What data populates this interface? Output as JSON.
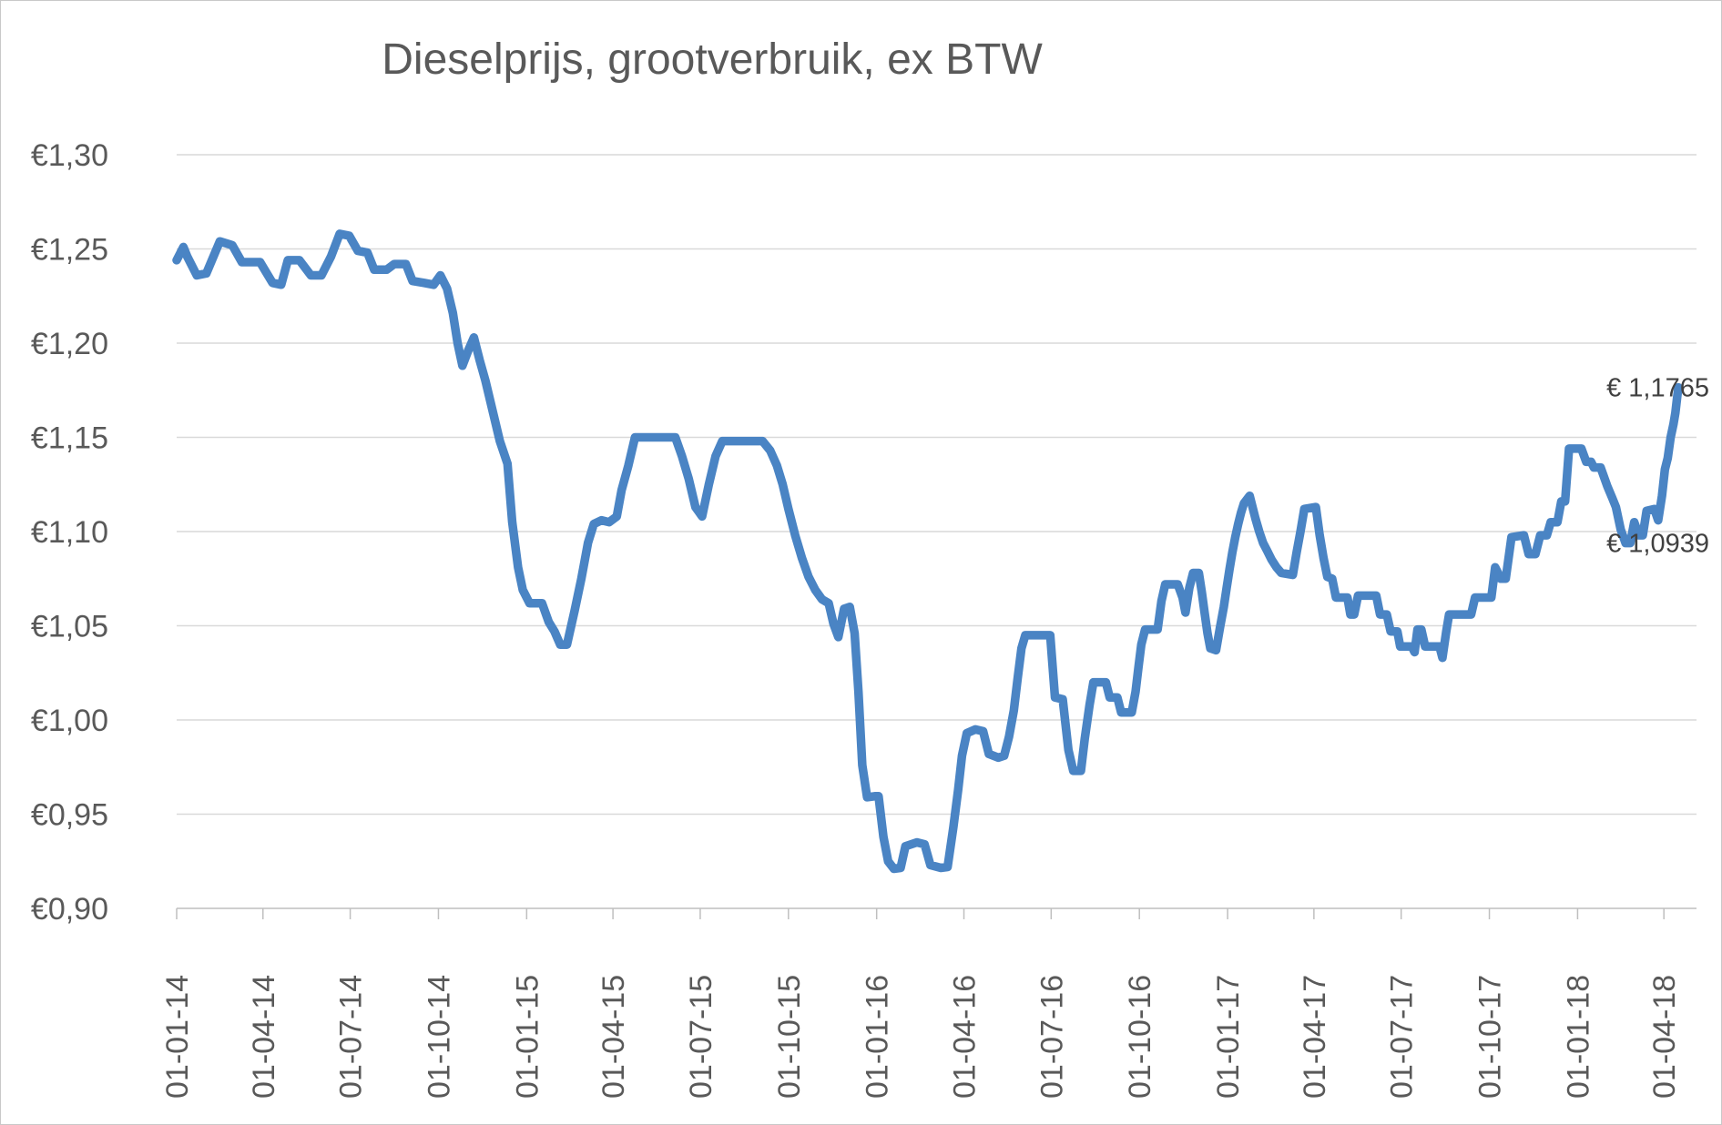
{
  "chart_data": {
    "type": "line",
    "title": "Dieselprijs, grootverbruik, ex BTW",
    "xlabel": "",
    "ylabel": "",
    "grid": true,
    "legend": "none",
    "ylim": [
      0.9,
      1.3
    ],
    "x_domain": [
      "2014-01-01",
      "2018-05-05"
    ],
    "colors": {
      "series": "#4a84c4",
      "gridline": "#d9d9d9",
      "axis": "#bfbfbf",
      "axis_text": "#595959",
      "title_text": "#595959",
      "data_label_text": "#404040",
      "background": "#ffffff"
    },
    "y_ticks": [
      {
        "value": 1.3,
        "label": "€1,30"
      },
      {
        "value": 1.25,
        "label": "€1,25"
      },
      {
        "value": 1.2,
        "label": "€1,20"
      },
      {
        "value": 1.15,
        "label": "€1,15"
      },
      {
        "value": 1.1,
        "label": "€1,10"
      },
      {
        "value": 1.05,
        "label": "€1,05"
      },
      {
        "value": 1.0,
        "label": "€1,00"
      },
      {
        "value": 0.95,
        "label": "€0,95"
      },
      {
        "value": 0.9,
        "label": "€0,90"
      }
    ],
    "x_ticks": [
      {
        "date": "2014-01-01",
        "label": "01-01-14"
      },
      {
        "date": "2014-04-01",
        "label": "01-04-14"
      },
      {
        "date": "2014-07-01",
        "label": "01-07-14"
      },
      {
        "date": "2014-10-01",
        "label": "01-10-14"
      },
      {
        "date": "2015-01-01",
        "label": "01-01-15"
      },
      {
        "date": "2015-04-01",
        "label": "01-04-15"
      },
      {
        "date": "2015-07-01",
        "label": "01-07-15"
      },
      {
        "date": "2015-10-01",
        "label": "01-10-15"
      },
      {
        "date": "2016-01-01",
        "label": "01-01-16"
      },
      {
        "date": "2016-04-01",
        "label": "01-04-16"
      },
      {
        "date": "2016-07-01",
        "label": "01-07-16"
      },
      {
        "date": "2016-10-01",
        "label": "01-10-16"
      },
      {
        "date": "2017-01-01",
        "label": "01-01-17"
      },
      {
        "date": "2017-04-01",
        "label": "01-04-17"
      },
      {
        "date": "2017-07-01",
        "label": "01-07-17"
      },
      {
        "date": "2017-10-01",
        "label": "01-10-17"
      },
      {
        "date": "2018-01-01",
        "label": "01-01-18"
      },
      {
        "date": "2018-04-01",
        "label": "01-04-18"
      }
    ],
    "annotations": [
      {
        "label": "€ 1,1765",
        "value": 1.1765
      },
      {
        "label": "€ 1,0939",
        "value": 1.0939
      }
    ],
    "series": [
      {
        "name": "Dieselprijs grootverbruik ex BTW",
        "color": "#4a84c4",
        "points": [
          [
            "2014-01-01",
            1.244
          ],
          [
            "2014-01-08",
            1.251
          ],
          [
            "2014-01-12",
            1.246
          ],
          [
            "2014-01-22",
            1.236
          ],
          [
            "2014-02-01",
            1.237
          ],
          [
            "2014-02-15",
            1.254
          ],
          [
            "2014-02-28",
            1.252
          ],
          [
            "2014-03-10",
            1.243
          ],
          [
            "2014-03-29",
            1.243
          ],
          [
            "2014-04-11",
            1.232
          ],
          [
            "2014-04-20",
            1.231
          ],
          [
            "2014-04-27",
            1.244
          ],
          [
            "2014-05-09",
            1.244
          ],
          [
            "2014-05-21",
            1.236
          ],
          [
            "2014-06-01",
            1.236
          ],
          [
            "2014-06-11",
            1.246
          ],
          [
            "2014-06-20",
            1.258
          ],
          [
            "2014-06-30",
            1.257
          ],
          [
            "2014-07-09",
            1.249
          ],
          [
            "2014-07-19",
            1.248
          ],
          [
            "2014-07-26",
            1.239
          ],
          [
            "2014-08-08",
            1.239
          ],
          [
            "2014-08-16",
            1.242
          ],
          [
            "2014-08-28",
            1.242
          ],
          [
            "2014-09-04",
            1.233
          ],
          [
            "2014-09-16",
            1.232
          ],
          [
            "2014-09-26",
            1.231
          ],
          [
            "2014-10-03",
            1.236
          ],
          [
            "2014-10-10",
            1.229
          ],
          [
            "2014-10-16",
            1.216
          ],
          [
            "2014-10-21",
            1.2
          ],
          [
            "2014-10-26",
            1.188
          ],
          [
            "2014-11-01",
            1.196
          ],
          [
            "2014-11-07",
            1.203
          ],
          [
            "2014-11-13",
            1.191
          ],
          [
            "2014-11-19",
            1.18
          ],
          [
            "2014-11-27",
            1.163
          ],
          [
            "2014-12-04",
            1.148
          ],
          [
            "2014-12-12",
            1.136
          ],
          [
            "2014-12-17",
            1.105
          ],
          [
            "2014-12-23",
            1.081
          ],
          [
            "2014-12-28",
            1.069
          ],
          [
            "2015-01-04",
            1.062
          ],
          [
            "2015-01-17",
            1.062
          ],
          [
            "2015-01-24",
            1.052
          ],
          [
            "2015-01-30",
            1.047
          ],
          [
            "2015-02-05",
            1.04
          ],
          [
            "2015-02-12",
            1.04
          ],
          [
            "2015-02-20",
            1.058
          ],
          [
            "2015-02-27",
            1.075
          ],
          [
            "2015-03-06",
            1.094
          ],
          [
            "2015-03-12",
            1.104
          ],
          [
            "2015-03-20",
            1.106
          ],
          [
            "2015-03-28",
            1.105
          ],
          [
            "2015-04-05",
            1.108
          ],
          [
            "2015-04-10",
            1.122
          ],
          [
            "2015-04-17",
            1.135
          ],
          [
            "2015-04-24",
            1.15
          ],
          [
            "2015-06-05",
            1.15
          ],
          [
            "2015-06-12",
            1.14
          ],
          [
            "2015-06-19",
            1.128
          ],
          [
            "2015-06-26",
            1.113
          ],
          [
            "2015-07-03",
            1.108
          ],
          [
            "2015-07-10",
            1.125
          ],
          [
            "2015-07-17",
            1.14
          ],
          [
            "2015-07-24",
            1.148
          ],
          [
            "2015-09-04",
            1.148
          ],
          [
            "2015-09-12",
            1.143
          ],
          [
            "2015-09-19",
            1.135
          ],
          [
            "2015-09-25",
            1.125
          ],
          [
            "2015-10-01",
            1.112
          ],
          [
            "2015-10-08",
            1.098
          ],
          [
            "2015-10-15",
            1.086
          ],
          [
            "2015-10-22",
            1.076
          ],
          [
            "2015-10-29",
            1.069
          ],
          [
            "2015-11-05",
            1.064
          ],
          [
            "2015-11-12",
            1.062
          ],
          [
            "2015-11-17",
            1.051
          ],
          [
            "2015-11-22",
            1.044
          ],
          [
            "2015-11-28",
            1.059
          ],
          [
            "2015-12-04",
            1.06
          ],
          [
            "2015-12-09",
            1.046
          ],
          [
            "2015-12-13",
            1.015
          ],
          [
            "2015-12-17",
            0.976
          ],
          [
            "2015-12-22",
            0.959
          ],
          [
            "2015-12-30",
            0.9595
          ],
          [
            "2016-01-03",
            0.9595
          ],
          [
            "2016-01-08",
            0.938
          ],
          [
            "2016-01-13",
            0.925
          ],
          [
            "2016-01-19",
            0.921
          ],
          [
            "2016-01-26",
            0.9215
          ],
          [
            "2016-01-31",
            0.933
          ],
          [
            "2016-02-12",
            0.935
          ],
          [
            "2016-02-20",
            0.934
          ],
          [
            "2016-02-26",
            0.923
          ],
          [
            "2016-03-08",
            0.9215
          ],
          [
            "2016-03-15",
            0.922
          ],
          [
            "2016-03-21",
            0.943
          ],
          [
            "2016-03-26",
            0.963
          ],
          [
            "2016-03-30",
            0.981
          ],
          [
            "2016-04-04",
            0.993
          ],
          [
            "2016-04-13",
            0.995
          ],
          [
            "2016-04-21",
            0.994
          ],
          [
            "2016-04-27",
            0.982
          ],
          [
            "2016-05-07",
            0.98
          ],
          [
            "2016-05-13",
            0.981
          ],
          [
            "2016-05-18",
            0.991
          ],
          [
            "2016-05-23",
            1.005
          ],
          [
            "2016-05-27",
            1.022
          ],
          [
            "2016-05-31",
            1.038
          ],
          [
            "2016-06-04",
            1.045
          ],
          [
            "2016-06-30",
            1.045
          ],
          [
            "2016-07-05",
            1.012
          ],
          [
            "2016-07-13",
            1.011
          ],
          [
            "2016-07-19",
            0.984
          ],
          [
            "2016-07-24",
            0.973
          ],
          [
            "2016-08-01",
            0.973
          ],
          [
            "2016-08-05",
            0.99
          ],
          [
            "2016-08-10",
            1.008
          ],
          [
            "2016-08-14",
            1.02
          ],
          [
            "2016-08-27",
            1.02
          ],
          [
            "2016-08-31",
            1.012
          ],
          [
            "2016-09-08",
            1.012
          ],
          [
            "2016-09-12",
            1.004
          ],
          [
            "2016-09-23",
            1.004
          ],
          [
            "2016-09-27",
            1.015
          ],
          [
            "2016-09-30",
            1.028
          ],
          [
            "2016-10-03",
            1.04
          ],
          [
            "2016-10-07",
            1.048
          ],
          [
            "2016-10-20",
            1.048
          ],
          [
            "2016-10-24",
            1.063
          ],
          [
            "2016-10-28",
            1.072
          ],
          [
            "2016-11-10",
            1.072
          ],
          [
            "2016-11-15",
            1.065
          ],
          [
            "2016-11-18",
            1.057
          ],
          [
            "2016-11-22",
            1.07
          ],
          [
            "2016-11-26",
            1.078
          ],
          [
            "2016-12-02",
            1.078
          ],
          [
            "2016-12-05",
            1.068
          ],
          [
            "2016-12-08",
            1.057
          ],
          [
            "2016-12-11",
            1.046
          ],
          [
            "2016-12-14",
            1.038
          ],
          [
            "2016-12-20",
            1.037
          ],
          [
            "2016-12-24",
            1.049
          ],
          [
            "2016-12-28",
            1.06
          ],
          [
            "2016-12-31",
            1.07
          ],
          [
            "2017-01-03",
            1.08
          ],
          [
            "2017-01-06",
            1.089
          ],
          [
            "2017-01-09",
            1.097
          ],
          [
            "2017-01-12",
            1.104
          ],
          [
            "2017-01-15",
            1.11
          ],
          [
            "2017-01-18",
            1.115
          ],
          [
            "2017-01-24",
            1.119
          ],
          [
            "2017-01-30",
            1.107
          ],
          [
            "2017-02-03",
            1.1
          ],
          [
            "2017-02-07",
            1.094
          ],
          [
            "2017-02-11",
            1.09
          ],
          [
            "2017-02-16",
            1.085
          ],
          [
            "2017-02-21",
            1.081
          ],
          [
            "2017-02-26",
            1.078
          ],
          [
            "2017-03-10",
            1.077
          ],
          [
            "2017-03-14",
            1.089
          ],
          [
            "2017-03-18",
            1.1
          ],
          [
            "2017-03-22",
            1.112
          ],
          [
            "2017-04-03",
            1.113
          ],
          [
            "2017-04-07",
            1.098
          ],
          [
            "2017-04-11",
            1.086
          ],
          [
            "2017-04-15",
            1.076
          ],
          [
            "2017-04-20",
            1.075
          ],
          [
            "2017-04-24",
            1.065
          ],
          [
            "2017-05-06",
            1.065
          ],
          [
            "2017-05-09",
            1.056
          ],
          [
            "2017-05-13",
            1.056
          ],
          [
            "2017-05-17",
            1.066
          ],
          [
            "2017-06-05",
            1.066
          ],
          [
            "2017-06-09",
            1.056
          ],
          [
            "2017-06-16",
            1.056
          ],
          [
            "2017-06-20",
            1.047
          ],
          [
            "2017-06-27",
            1.047
          ],
          [
            "2017-06-30",
            1.039
          ],
          [
            "2017-07-12",
            1.039
          ],
          [
            "2017-07-15",
            1.036
          ],
          [
            "2017-07-18",
            1.048
          ],
          [
            "2017-07-22",
            1.048
          ],
          [
            "2017-07-26",
            1.039
          ],
          [
            "2017-08-10",
            1.039
          ],
          [
            "2017-08-13",
            1.033
          ],
          [
            "2017-08-17",
            1.047
          ],
          [
            "2017-08-20",
            1.056
          ],
          [
            "2017-09-12",
            1.056
          ],
          [
            "2017-09-16",
            1.065
          ],
          [
            "2017-10-03",
            1.065
          ],
          [
            "2017-10-07",
            1.081
          ],
          [
            "2017-10-13",
            1.075
          ],
          [
            "2017-10-18",
            1.075
          ],
          [
            "2017-10-24",
            1.097
          ],
          [
            "2017-11-06",
            1.098
          ],
          [
            "2017-11-11",
            1.088
          ],
          [
            "2017-11-18",
            1.088
          ],
          [
            "2017-11-23",
            1.098
          ],
          [
            "2017-11-30",
            1.098
          ],
          [
            "2017-12-04",
            1.105
          ],
          [
            "2017-12-11",
            1.105
          ],
          [
            "2017-12-15",
            1.116
          ],
          [
            "2017-12-19",
            1.116
          ],
          [
            "2017-12-23",
            1.144
          ],
          [
            "2018-01-05",
            1.144
          ],
          [
            "2018-01-10",
            1.137
          ],
          [
            "2018-01-15",
            1.137
          ],
          [
            "2018-01-18",
            1.134
          ],
          [
            "2018-01-25",
            1.134
          ],
          [
            "2018-02-01",
            1.124
          ],
          [
            "2018-02-06",
            1.118
          ],
          [
            "2018-02-10",
            1.113
          ],
          [
            "2018-02-15",
            1.101
          ],
          [
            "2018-02-20",
            1.0939
          ],
          [
            "2018-02-25",
            1.0939
          ],
          [
            "2018-03-01",
            1.105
          ],
          [
            "2018-03-06",
            1.098
          ],
          [
            "2018-03-10",
            1.098
          ],
          [
            "2018-03-14",
            1.111
          ],
          [
            "2018-03-22",
            1.112
          ],
          [
            "2018-03-26",
            1.106
          ],
          [
            "2018-03-30",
            1.119
          ],
          [
            "2018-04-02",
            1.133
          ],
          [
            "2018-04-05",
            1.139
          ],
          [
            "2018-04-08",
            1.15
          ],
          [
            "2018-04-11",
            1.157
          ],
          [
            "2018-04-13",
            1.163
          ],
          [
            "2018-04-16",
            1.1765
          ]
        ]
      }
    ]
  }
}
